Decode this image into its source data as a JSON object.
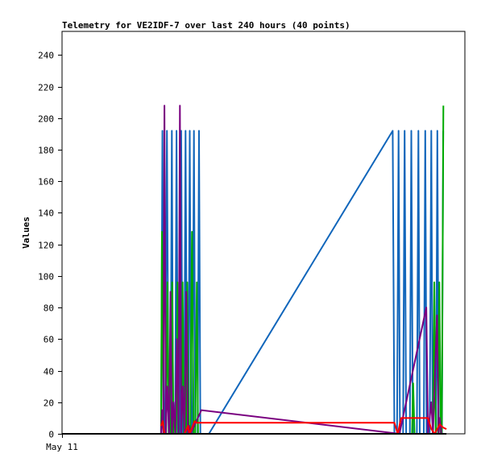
{
  "chart_data": {
    "type": "line",
    "title": "Telemetry for VE2IDF-7 over last 240 hours (40 points)",
    "xlabel": "",
    "ylabel": "Values",
    "x_tick_labels": [
      "May 11"
    ],
    "ylim": [
      0,
      255
    ],
    "y_ticks": [
      0,
      20,
      40,
      60,
      80,
      100,
      120,
      140,
      160,
      180,
      200,
      220,
      240
    ],
    "grid": false,
    "xlim": [
      0,
      240
    ],
    "series": [
      {
        "color": "#1166bb",
        "points": [
          [
            59,
            0
          ],
          [
            59.8,
            192
          ],
          [
            60.6,
            0
          ],
          [
            61.4,
            0
          ],
          [
            62.5,
            192
          ],
          [
            63.5,
            0
          ],
          [
            64.6,
            0
          ],
          [
            65.4,
            192
          ],
          [
            66.2,
            0
          ],
          [
            67.4,
            0
          ],
          [
            68.2,
            192
          ],
          [
            69,
            0
          ],
          [
            70.1,
            0
          ],
          [
            71,
            192
          ],
          [
            71.8,
            0
          ],
          [
            72.7,
            0
          ],
          [
            73.6,
            192
          ],
          [
            74.5,
            0
          ],
          [
            75.3,
            0
          ],
          [
            76.1,
            192
          ],
          [
            76.9,
            0
          ],
          [
            77.7,
            0
          ],
          [
            78.6,
            192
          ],
          [
            79.4,
            0
          ],
          [
            80.8,
            0
          ],
          [
            81.6,
            192
          ],
          [
            82.4,
            0
          ],
          [
            87.5,
            0
          ],
          [
            197,
            192
          ],
          [
            198,
            0
          ],
          [
            199.6,
            0
          ],
          [
            200.5,
            192
          ],
          [
            201.3,
            0
          ],
          [
            203.2,
            0
          ],
          [
            204.1,
            192
          ],
          [
            205,
            0
          ],
          [
            207.2,
            0
          ],
          [
            208.1,
            192
          ],
          [
            209,
            0
          ],
          [
            211.4,
            0
          ],
          [
            212.3,
            192
          ],
          [
            213.1,
            0
          ],
          [
            215.5,
            0
          ],
          [
            216.4,
            192
          ],
          [
            217.2,
            0
          ],
          [
            219,
            0
          ],
          [
            220,
            192
          ],
          [
            220.8,
            0
          ],
          [
            222.8,
            0
          ],
          [
            223.6,
            192
          ],
          [
            224.4,
            0
          ],
          [
            226.3,
            0
          ],
          [
            227.1,
            192
          ]
        ]
      },
      {
        "color": "#00aa00",
        "points": [
          [
            59,
            0
          ],
          [
            59.5,
            128
          ],
          [
            60.5,
            0
          ],
          [
            62,
            0
          ],
          [
            62.8,
            96
          ],
          [
            63.6,
            0
          ],
          [
            64.8,
            0
          ],
          [
            65.6,
            96
          ],
          [
            66.4,
            0
          ],
          [
            68,
            0
          ],
          [
            68.8,
            96
          ],
          [
            69.6,
            0
          ],
          [
            71,
            0
          ],
          [
            71.8,
            96
          ],
          [
            72.6,
            0
          ],
          [
            73.8,
            0
          ],
          [
            74.6,
            96
          ],
          [
            75.4,
            0
          ],
          [
            76.4,
            0
          ],
          [
            77.4,
            128
          ],
          [
            78.4,
            0
          ],
          [
            79.4,
            0
          ],
          [
            80.3,
            96
          ],
          [
            81,
            0
          ],
          [
            81.5,
            0
          ],
          [
            208.5,
            0
          ],
          [
            209.2,
            32
          ],
          [
            210,
            0
          ],
          [
            221,
            0
          ],
          [
            221.8,
            96
          ],
          [
            222.6,
            0
          ],
          [
            224,
            0
          ],
          [
            224.8,
            96
          ],
          [
            225.6,
            0
          ],
          [
            226.2,
            0
          ],
          [
            227.2,
            208
          ]
        ]
      },
      {
        "color": "#7a0080",
        "points": [
          [
            59,
            0
          ],
          [
            59.6,
            15
          ],
          [
            60.3,
            0
          ],
          [
            61,
            208
          ],
          [
            61.8,
            0
          ],
          [
            62.8,
            30
          ],
          [
            63.8,
            0
          ],
          [
            64.6,
            90
          ],
          [
            65.4,
            0
          ],
          [
            66.4,
            20
          ],
          [
            67.4,
            0
          ],
          [
            68.4,
            60
          ],
          [
            69.4,
            0
          ],
          [
            70.2,
            208
          ],
          [
            71,
            0
          ],
          [
            72,
            30
          ],
          [
            73,
            0
          ],
          [
            74,
            90
          ],
          [
            75,
            0
          ],
          [
            75.8,
            5
          ],
          [
            76.6,
            0
          ],
          [
            83,
            15
          ],
          [
            201,
            0
          ],
          [
            217,
            80
          ],
          [
            218,
            0
          ],
          [
            220,
            20
          ],
          [
            221,
            0
          ],
          [
            223.4,
            75
          ],
          [
            224.4,
            0
          ],
          [
            225,
            10
          ],
          [
            226,
            0
          ]
        ]
      },
      {
        "color": "#ff0000",
        "points": [
          [
            59,
            5
          ],
          [
            60,
            8
          ],
          [
            61,
            0
          ],
          [
            73,
            0
          ],
          [
            75,
            5
          ],
          [
            76,
            0
          ],
          [
            79,
            8
          ],
          [
            80,
            7
          ],
          [
            198,
            7
          ],
          [
            200,
            0
          ],
          [
            202,
            10
          ],
          [
            218,
            10
          ],
          [
            220,
            3
          ],
          [
            222,
            0
          ],
          [
            225,
            6
          ],
          [
            227,
            4
          ],
          [
            229,
            3
          ]
        ]
      },
      {
        "color": "#000000",
        "points": [
          [
            0,
            0
          ],
          [
            229,
            0
          ]
        ]
      }
    ]
  }
}
